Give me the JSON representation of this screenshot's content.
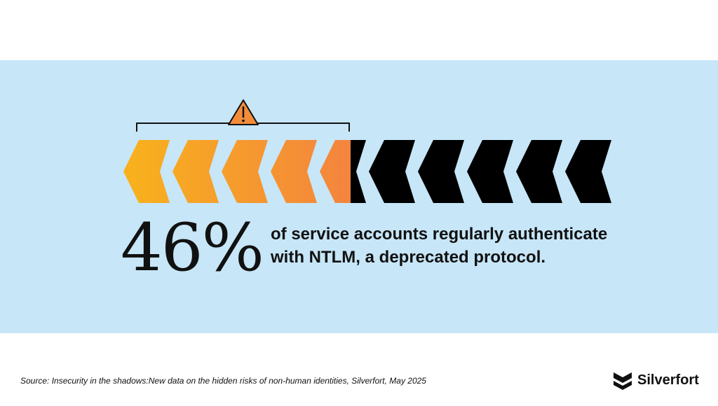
{
  "graphic": {
    "chevron_total": 10,
    "chevron_highlighted": 4.6,
    "highlight_gradient": [
      "#f8b21c",
      "#f4843e"
    ],
    "rest_color": "#000000",
    "warning_color": "#f28c3a",
    "icons": [
      "warning-triangle-icon",
      "bracket"
    ]
  },
  "stat": {
    "value": "46%",
    "description": "of service accounts regularly authenticate with NTLM, a deprecated protocol."
  },
  "footer": {
    "source": "Source: Insecurity in the shadows:New data on the hidden risks of non-human identities, Silverfort, May 2025",
    "brand": "Silverfort"
  },
  "colors": {
    "band": "#c7e6f8",
    "text": "#111111"
  }
}
